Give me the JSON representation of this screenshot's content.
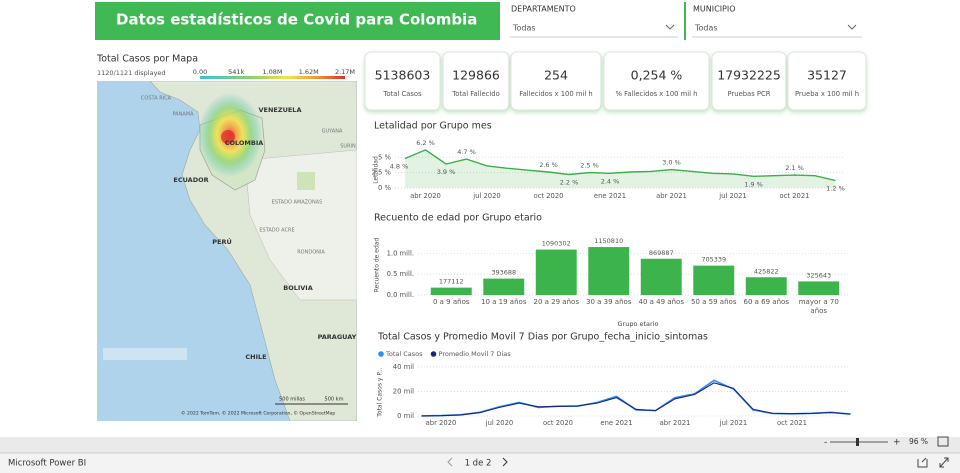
{
  "header": {
    "title": "Datos estadísticos de Covid para Colombia"
  },
  "filters": [
    {
      "label": "DEPARTAMENTO",
      "value": "Todas"
    },
    {
      "label": "MUNICIPIO",
      "value": "Todas"
    }
  ],
  "map": {
    "title": "Total Casos por Mapa",
    "displayed": "1120/1121 displayed",
    "legend": [
      "0.00",
      "541k",
      "1.08M",
      "1.62M",
      "2.17M"
    ],
    "labels": [
      "COSTA RICA",
      "PANAMÁ",
      "VENEZUELA",
      "GUYANA",
      "SURIN",
      "COLOMBIA",
      "ECUADOR",
      "ESTADO AMAZONAS",
      "PERÚ",
      "ESTADO ACRE",
      "RONDONIA",
      "BOLIVIA",
      "PARAGUAY",
      "CHILE"
    ],
    "scale": [
      "500 millas",
      "500 km"
    ],
    "attribution": "© 2022 TomTom, © 2022 Microsoft Corporation, © OpenStreetMap"
  },
  "cards": [
    {
      "value": "5138603",
      "label": "Total Casos"
    },
    {
      "value": "129866",
      "label": "Total Fallecido"
    },
    {
      "value": "254",
      "label": "Fallecidos x 100 mil h"
    },
    {
      "value": "0,254 %",
      "label": "% Fallecidos x 100 mil h"
    },
    {
      "value": "17932225",
      "label": "Pruebas PCR"
    },
    {
      "value": "35127",
      "label": "Prueba x 100 mil h"
    }
  ],
  "charts": [
    {
      "type": "line",
      "title": "Letalidad por Grupo mes",
      "y_label": "Letalidad",
      "categories": [
        null,
        "abr 2020",
        null,
        null,
        "jul 2020",
        null,
        null,
        "oct 2020",
        null,
        null,
        "ene 2021",
        null,
        null,
        "abr 2021",
        null,
        null,
        "jul 2021",
        null,
        null,
        "oct 2021",
        null,
        null
      ],
      "values": [
        4.8,
        6.2,
        3.9,
        4.7,
        3.6,
        3.2,
        2.9,
        2.6,
        2.2,
        2.5,
        2.4,
        2.6,
        2.7,
        3.0,
        2.7,
        2.4,
        2.3,
        1.9,
        2.0,
        2.1,
        2.0,
        1.2
      ],
      "value_labels": [
        "4.8 %",
        "6.2 %",
        "3.9 %",
        "4.7 %",
        null,
        null,
        null,
        "2.6 %",
        "2.2 %",
        "2.5 %",
        "2.4 %",
        null,
        null,
        "3.0 %",
        null,
        null,
        null,
        "1.9 %",
        null,
        "2.1 %",
        null,
        "1.2 %"
      ],
      "color": "#3cae4a",
      "ylim": [
        0,
        7
      ],
      "yticks": [
        {
          "value": 0,
          "label": "0 %"
        },
        {
          "value": 2.5,
          "label": "2.5 %"
        },
        {
          "value": 5,
          "label": "5 %"
        }
      ],
      "grid": true
    },
    {
      "type": "bar",
      "title": "Recuento de edad por Grupo etario",
      "y_label": "Recuento de edad",
      "x_label": "Grupo etario",
      "categories": [
        "0 a 9 años",
        "10 a 19 años",
        "20 a 29 años",
        "30 a 39 años",
        "40 a 49 años",
        "50 a 59 años",
        "60 a 69 años",
        "mayor a 70 años"
      ],
      "values": [
        177112,
        393688,
        1090302,
        1150810,
        869887,
        705339,
        425822,
        325643
      ],
      "color": "#3cb44b",
      "ylim": [
        0,
        1200000
      ],
      "yticks": [
        {
          "value": 0,
          "label": "0.0 mill."
        },
        {
          "value": 500000,
          "label": "0.5 mill."
        },
        {
          "value": 1000000,
          "label": "1.0 mill."
        }
      ],
      "grid": true
    },
    {
      "type": "line",
      "title": "Total Casos y Promedio Movil 7 Dias por Grupo_fecha_inicio_sintomas",
      "y_label": "Total Casos y P...",
      "categories": [
        null,
        "abr 2020",
        null,
        null,
        "jul 2020",
        null,
        null,
        "oct 2020",
        null,
        null,
        "ene 2021",
        null,
        null,
        "abr 2021",
        null,
        null,
        "jul 2021",
        null,
        null,
        "oct 2021",
        null,
        null,
        null
      ],
      "series": [
        {
          "name": "Total Casos",
          "color": "#2a8ff0",
          "values": [
            100,
            300,
            1000,
            3000,
            7500,
            11000,
            7000,
            8000,
            8000,
            11000,
            16000,
            5000,
            4500,
            15000,
            18000,
            29000,
            22000,
            5000,
            2000,
            1800,
            2200,
            3000,
            1500
          ]
        },
        {
          "name": "Promedio Movil 7 Dias",
          "color": "#1a237e",
          "values": [
            80,
            250,
            900,
            2800,
            7000,
            10500,
            7500,
            7800,
            8200,
            10500,
            15000,
            5500,
            4300,
            14000,
            17500,
            27000,
            22500,
            5500,
            2200,
            1900,
            2100,
            2800,
            1600
          ]
        }
      ],
      "ylim": [
        0,
        44000
      ],
      "yticks": [
        {
          "value": 0,
          "label": "0 mil"
        },
        {
          "value": 20000,
          "label": "20 mil"
        },
        {
          "value": 40000,
          "label": "40 mil"
        }
      ],
      "grid": true
    }
  ],
  "footer": {
    "app": "Microsoft Power BI",
    "page": "1 de 2",
    "zoom": "96 %"
  }
}
